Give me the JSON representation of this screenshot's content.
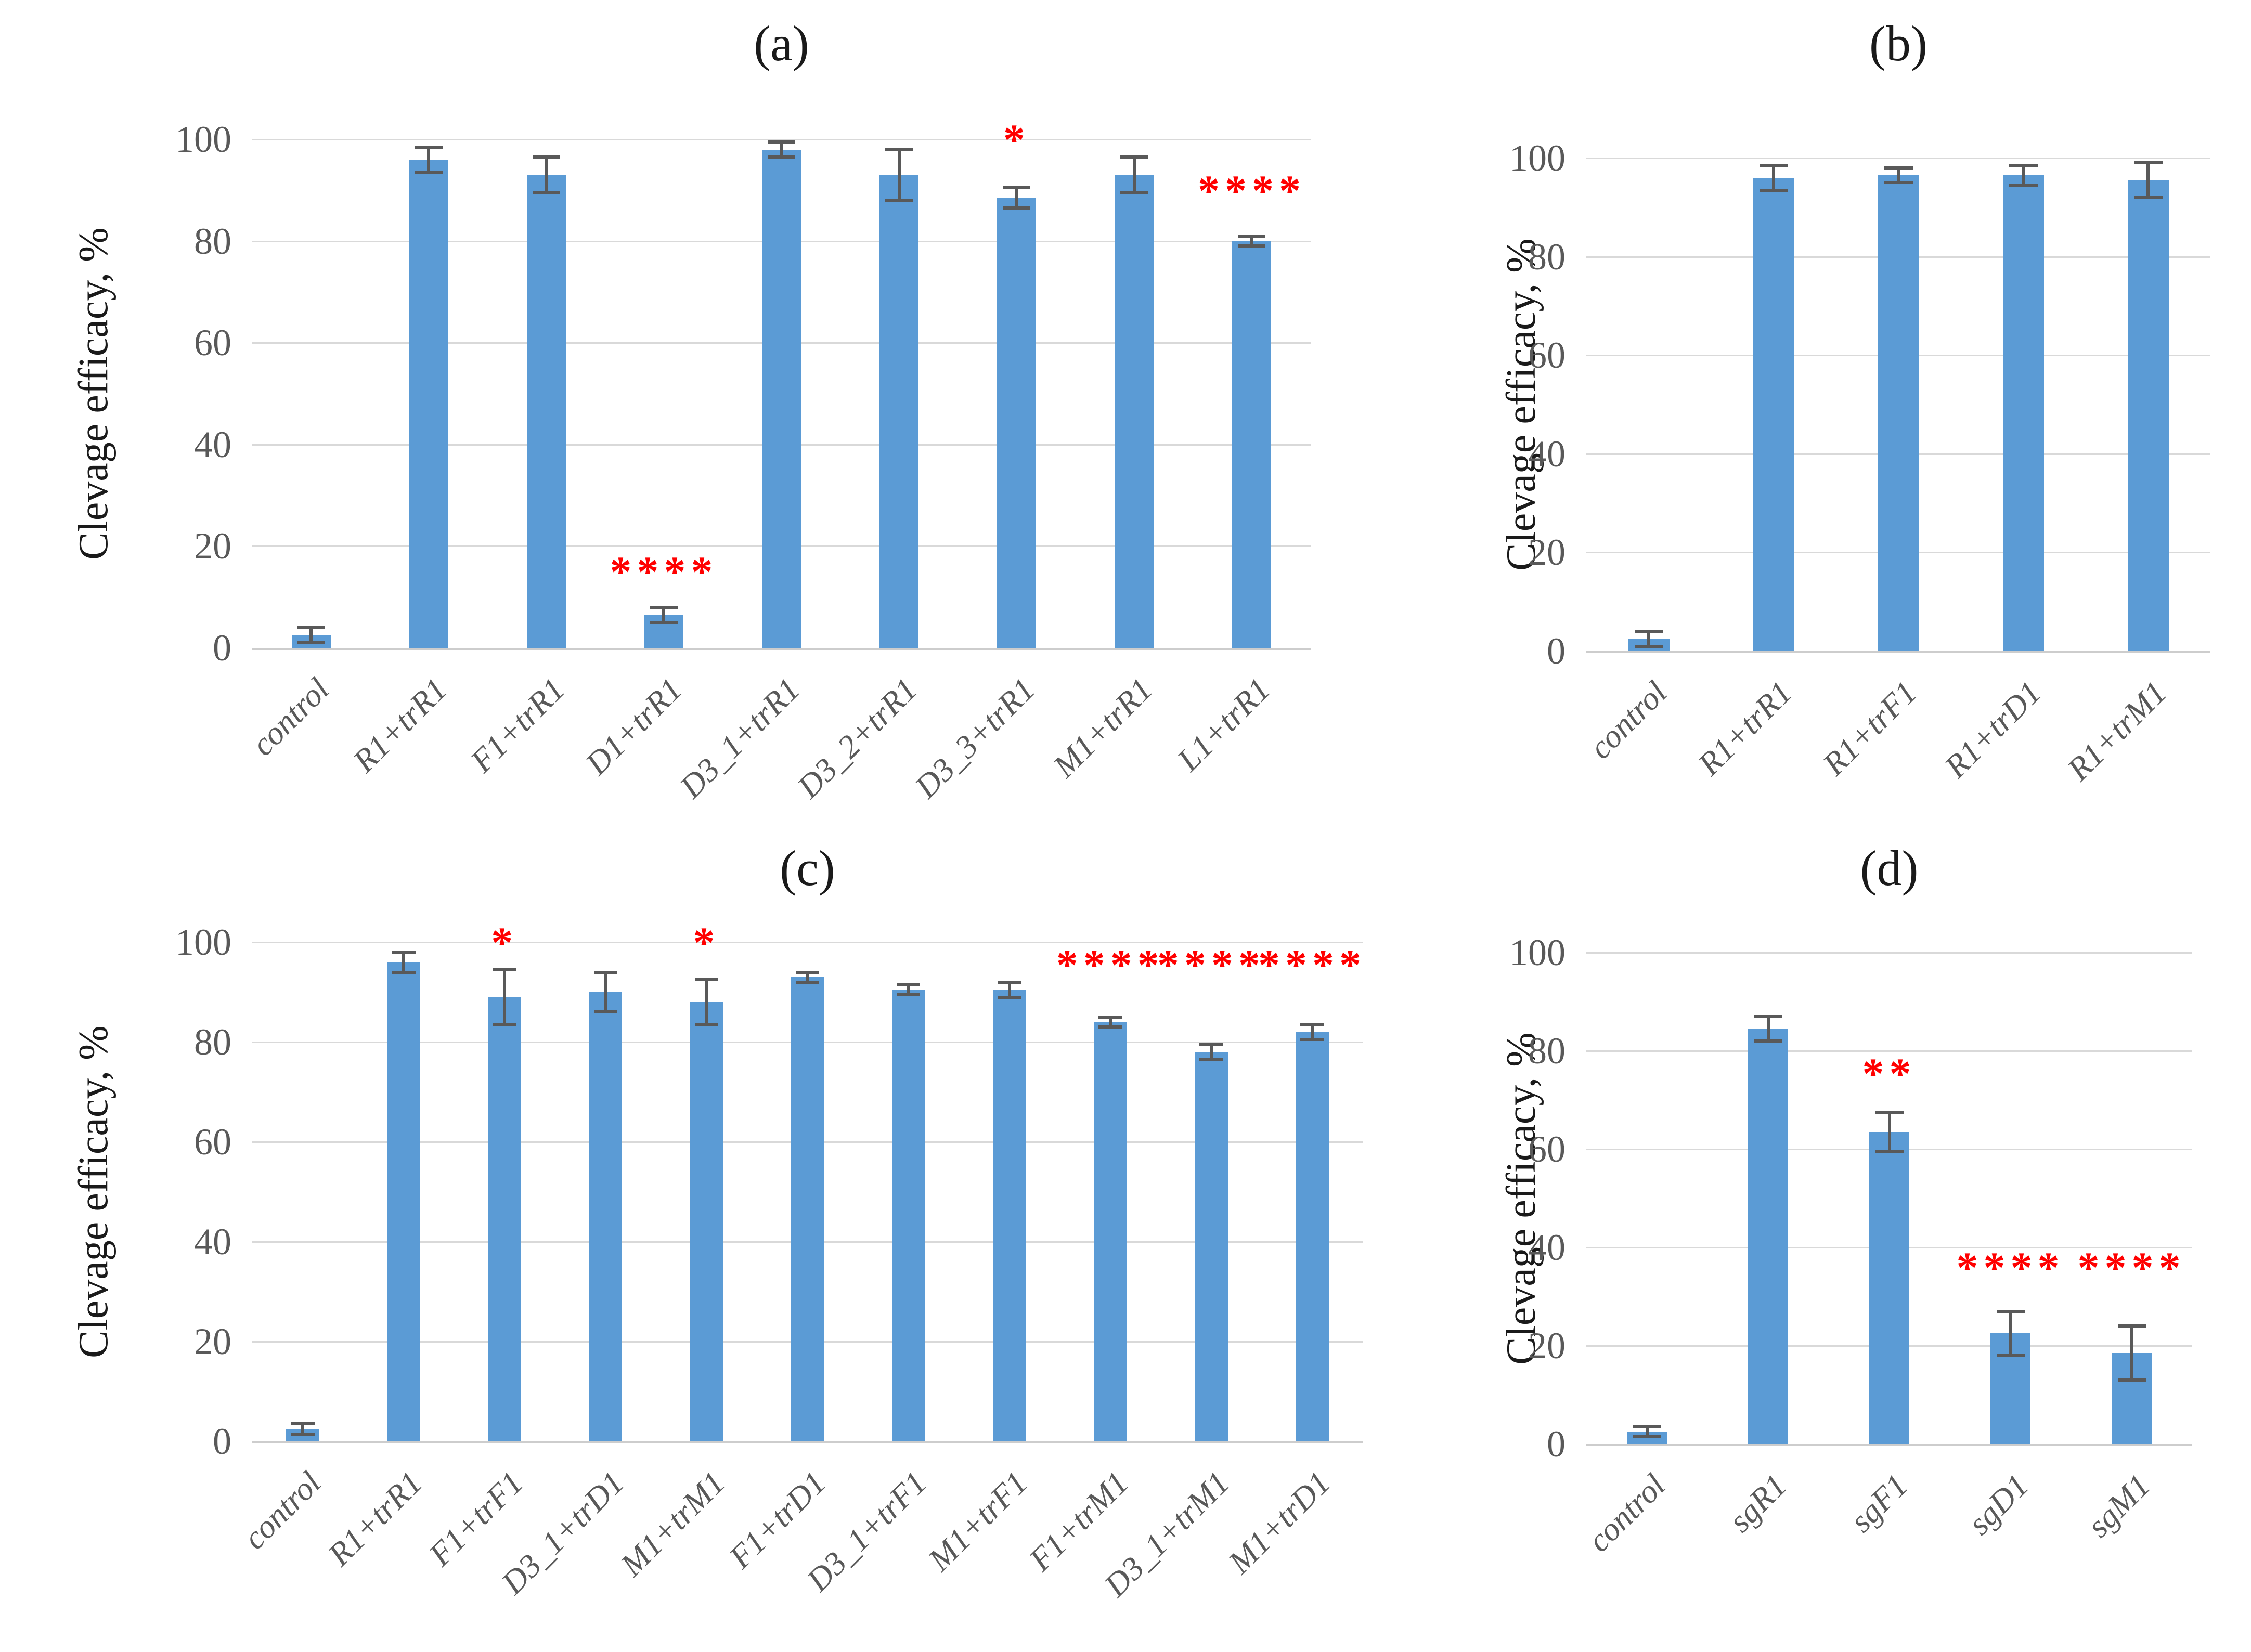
{
  "figure": {
    "kind": "four-panel scientific bar chart figure",
    "colors": {
      "bar": "#5B9BD5",
      "error_bar": "#595959",
      "significance": "#FF0000",
      "gridline": "#D9D9D9",
      "axis_line": "#CDCDCD",
      "tick_text": "#595959",
      "label_text": "#1A1A1A"
    }
  },
  "chart_data": [
    {
      "type": "bar",
      "title": "(a)",
      "ylabel": "Clevage efficacy, %",
      "xlabel": "",
      "ylim": [
        0,
        100
      ],
      "yticks": [
        0,
        20,
        40,
        60,
        80,
        100
      ],
      "grid": true,
      "legend": false,
      "categories": [
        "control",
        "R1+trR1",
        "F1+trR1",
        "D1+trR1",
        "D3_1+trR1",
        "D3_2+trR1",
        "D3_3+trR1",
        "M1+trR1",
        "L1+trR1"
      ],
      "values": [
        2.5,
        96,
        93,
        6.5,
        98,
        93,
        88.5,
        93,
        80
      ],
      "errors": [
        1.5,
        2.5,
        3.5,
        1.5,
        1.5,
        5,
        2,
        3.5,
        1
      ],
      "significance": [
        null,
        null,
        null,
        "****",
        null,
        null,
        "*",
        null,
        "****"
      ],
      "significance_y": [
        null,
        null,
        null,
        15.5,
        null,
        null,
        100.5,
        null,
        90.5
      ]
    },
    {
      "type": "bar",
      "title": "(b)",
      "ylabel": "Clevage efficacy, %",
      "xlabel": "",
      "ylim": [
        0,
        100
      ],
      "yticks": [
        0,
        20,
        40,
        60,
        80,
        100
      ],
      "grid": true,
      "legend": false,
      "categories": [
        "control",
        "R1+trR1",
        "R1+trF1",
        "R1+trD1",
        "R1+trM1"
      ],
      "values": [
        2.5,
        96,
        96.5,
        96.5,
        95.5
      ],
      "errors": [
        1.5,
        2.5,
        1.5,
        2,
        3.5
      ],
      "significance": [
        null,
        null,
        null,
        null,
        null
      ],
      "significance_y": [
        null,
        null,
        null,
        null,
        null
      ]
    },
    {
      "type": "bar",
      "title": "(c)",
      "ylabel": "Clevage efficacy, %",
      "xlabel": "",
      "ylim": [
        0,
        100
      ],
      "yticks": [
        0,
        20,
        40,
        60,
        80,
        100
      ],
      "grid": true,
      "legend": false,
      "categories": [
        "control",
        "R1+trR1",
        "F1+trF1",
        "D3_1+trD1",
        "M1+trM1",
        "F1+trD1",
        "D3_1+trF1",
        "M1+trF1",
        "F1+trM1",
        "D3_1+trM1",
        "M1+trD1"
      ],
      "values": [
        2.5,
        96,
        89,
        90,
        88,
        93,
        90.5,
        90.5,
        84,
        78,
        82
      ],
      "errors": [
        1,
        2,
        5.5,
        4,
        4.5,
        1,
        1,
        1.5,
        1,
        1.5,
        1.5
      ],
      "significance": [
        null,
        null,
        "*",
        null,
        "*",
        null,
        null,
        null,
        "****",
        "****",
        "****"
      ],
      "significance_y": [
        null,
        null,
        100.5,
        null,
        100.5,
        null,
        null,
        null,
        96,
        96,
        96
      ]
    },
    {
      "type": "bar",
      "title": "(d)",
      "ylabel": "Clevage efficacy, %",
      "xlabel": "",
      "ylim": [
        0,
        100
      ],
      "yticks": [
        0,
        20,
        40,
        60,
        80,
        100
      ],
      "grid": true,
      "legend": false,
      "categories": [
        "control",
        "sgR1",
        "sgF1",
        "sgD1",
        "sgM1"
      ],
      "values": [
        2.5,
        84.5,
        63.5,
        22.5,
        18.5
      ],
      "errors": [
        1,
        2.5,
        4,
        4.5,
        5.5
      ],
      "significance": [
        null,
        null,
        "**",
        "****",
        "****"
      ],
      "significance_y": [
        null,
        null,
        76,
        36.5,
        36.5
      ]
    }
  ]
}
